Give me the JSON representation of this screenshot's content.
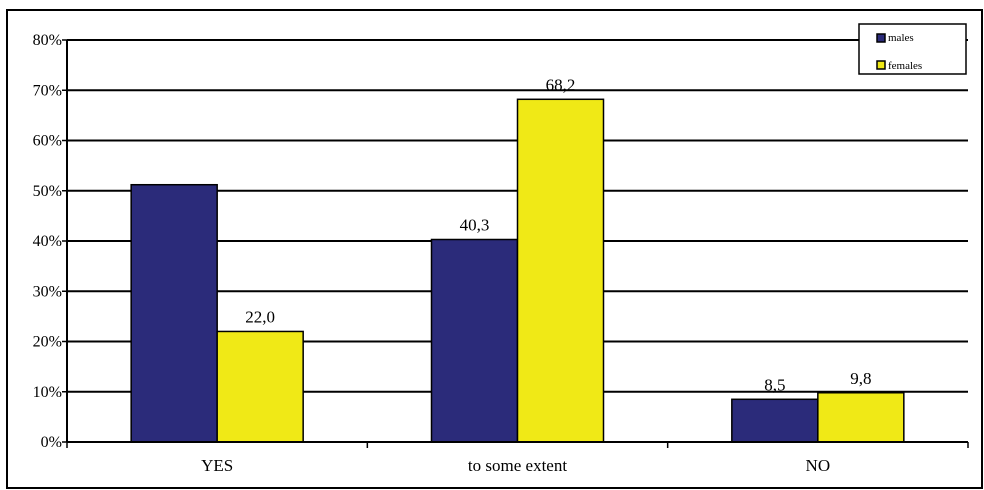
{
  "chart_data": {
    "type": "bar",
    "categories": [
      "YES",
      "to some extent",
      "NO"
    ],
    "series": [
      {
        "name": "males",
        "values": [
          51.2,
          40.3,
          8.5
        ],
        "labels": [
          "",
          "40,3",
          "8,5"
        ],
        "color": "#2b2b7a"
      },
      {
        "name": "females",
        "values": [
          22.0,
          68.2,
          9.8
        ],
        "labels": [
          "22,0",
          "68,2",
          "9,8"
        ],
        "color": "#f0e916"
      }
    ],
    "yticks": [
      "0%",
      "10%",
      "20%",
      "30%",
      "40%",
      "50%",
      "60%",
      "70%",
      "80%"
    ],
    "ylim": [
      0,
      80
    ],
    "grid": true,
    "legend_position": "top-right",
    "title": "",
    "xlabel": "",
    "ylabel": ""
  }
}
